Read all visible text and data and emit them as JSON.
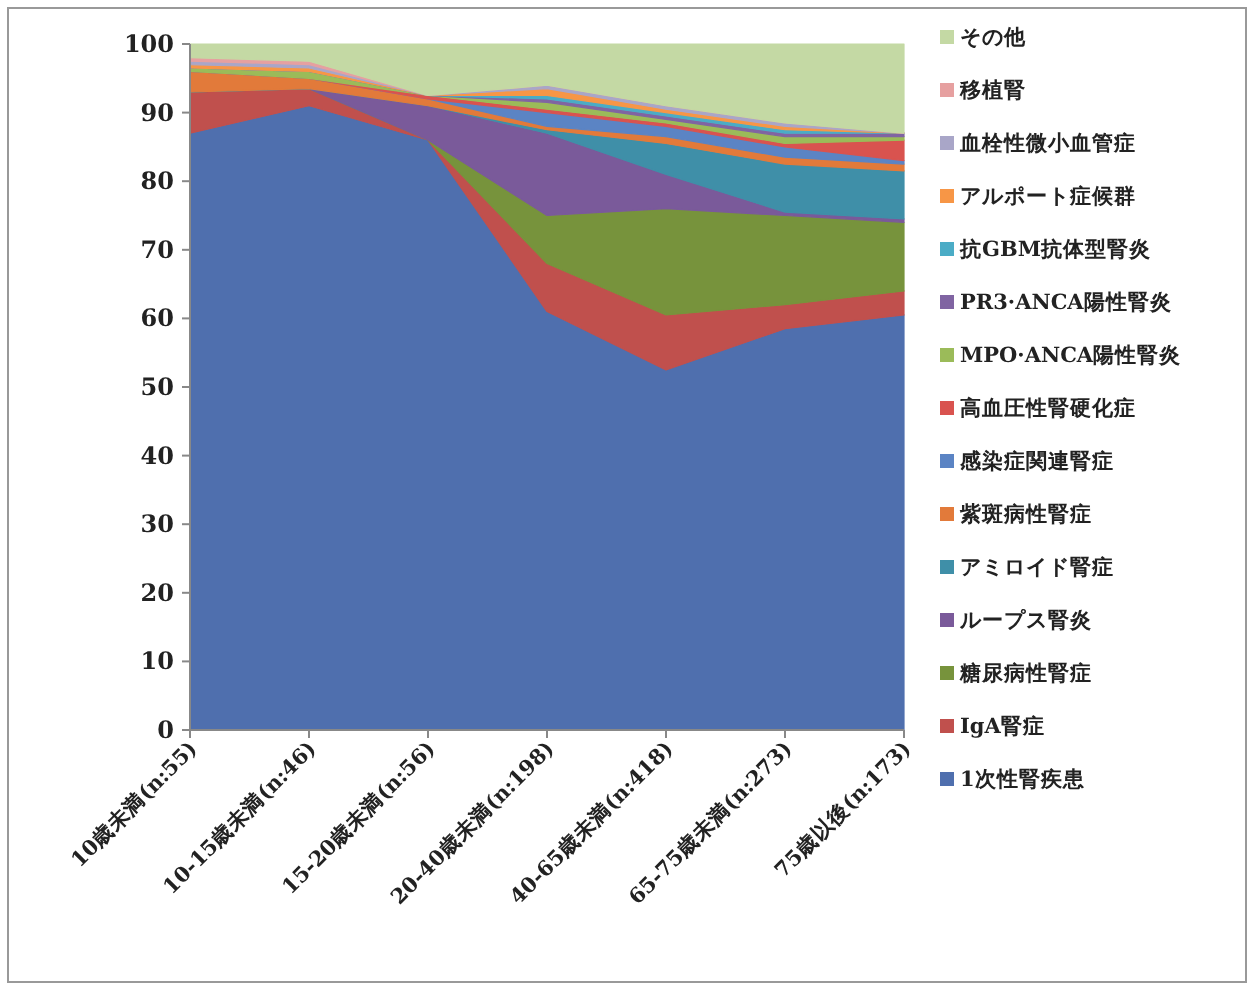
{
  "chart_data": {
    "type": "area",
    "stacked": true,
    "categories": [
      "10歳未満(n:55)",
      "10-15歳未満(n:46)",
      "15-20歳未満(n:56)",
      "20-40歳未満(n:198)",
      "40-65歳未満(n:418)",
      "65-75歳未満(n:273)",
      "75歳以後(n:173)"
    ],
    "ylim": [
      0,
      100
    ],
    "yticks": [
      0,
      10,
      20,
      30,
      40,
      50,
      60,
      70,
      80,
      90,
      100
    ],
    "grid": false,
    "legend": "right",
    "series": [
      {
        "name": "1次性腎疾患",
        "color": "#4f6fae",
        "values": [
          87,
          91,
          86,
          61,
          52.5,
          58.5,
          60.5
        ]
      },
      {
        "name": "IgA腎症",
        "color": "#c0504d",
        "values": [
          6,
          2.5,
          0,
          7,
          8,
          3.5,
          3.5
        ]
      },
      {
        "name": "糖尿病性腎症",
        "color": "#77933c",
        "values": [
          0,
          0,
          0,
          7,
          15.5,
          13,
          10
        ]
      },
      {
        "name": "ループス腎炎",
        "color": "#7a5a9a",
        "values": [
          0,
          0,
          5,
          12,
          5,
          0.5,
          0.5
        ]
      },
      {
        "name": "アミロイド腎症",
        "color": "#3f8fa8",
        "values": [
          0,
          0,
          0,
          0.5,
          4.5,
          7,
          7
        ]
      },
      {
        "name": "紫斑病性腎症",
        "color": "#e27a3a",
        "values": [
          3,
          1.5,
          1,
          0.5,
          1,
          1,
          1
        ]
      },
      {
        "name": "感染症関連腎症",
        "color": "#5b84c4",
        "values": [
          0,
          0,
          0,
          2,
          1.5,
          1.5,
          0.5
        ]
      },
      {
        "name": "高血圧性腎硬化症",
        "color": "#d9534f",
        "values": [
          0,
          0,
          0.5,
          0.5,
          0.5,
          0.5,
          3
        ]
      },
      {
        "name": "MPO·ANCA陽性腎炎",
        "color": "#9bbb59",
        "values": [
          0.5,
          1,
          0,
          1,
          0.5,
          1,
          0.5
        ]
      },
      {
        "name": "PR3·ANCA陽性腎炎",
        "color": "#8064a2",
        "values": [
          0,
          0,
          0,
          0.5,
          0.5,
          0.5,
          0.5
        ]
      },
      {
        "name": "抗GBM抗体型腎炎",
        "color": "#4bacc6",
        "values": [
          0,
          0,
          0,
          0.5,
          0.5,
          0.5,
          0
        ]
      },
      {
        "name": "アルポート症候群",
        "color": "#f79646",
        "values": [
          0.5,
          0.5,
          0,
          1,
          0.5,
          0.5,
          0
        ]
      },
      {
        "name": "血栓性微小血管症",
        "color": "#a9a6c8",
        "values": [
          0.5,
          0.5,
          0,
          0.5,
          0.5,
          0.5,
          0
        ]
      },
      {
        "name": "移植腎",
        "color": "#e6a0a0",
        "values": [
          0.5,
          0.5,
          0,
          0,
          0,
          0,
          0
        ]
      },
      {
        "name": "その他",
        "color": "#c4d9a4",
        "values": [
          2,
          2.5,
          7.5,
          6,
          9,
          11.5,
          13
        ]
      }
    ]
  }
}
